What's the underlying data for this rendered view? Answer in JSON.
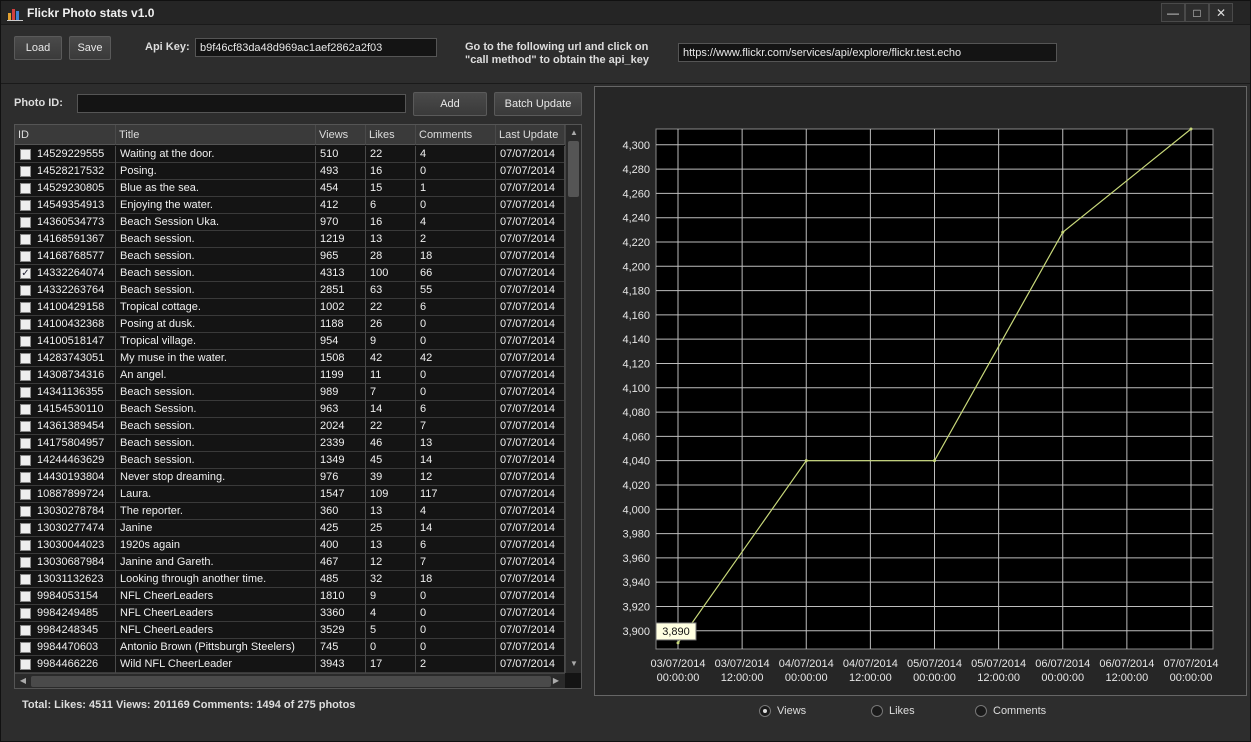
{
  "window": {
    "title": "Flickr Photo stats v1.0"
  },
  "toolbar": {
    "load_label": "Load",
    "save_label": "Save",
    "api_key_label": "Api Key:",
    "api_key_value": "b9f46cf83da48d969ac1aef2862a2f03",
    "hint_line1": "Go to the following url and click on",
    "hint_line2": "\"call method\" to obtain the api_key",
    "url_value": "https://www.flickr.com/services/api/explore/flickr.test.echo"
  },
  "photo_input": {
    "label": "Photo ID:",
    "value": "",
    "add_label": "Add",
    "batch_label": "Batch Update"
  },
  "grid": {
    "columns": [
      "ID",
      "Title",
      "Views",
      "Likes",
      "Comments",
      "Last Update"
    ],
    "rows": [
      {
        "checked": false,
        "id": "14529229555",
        "title": "Waiting at the door.",
        "views": "510",
        "likes": "22",
        "comments": "4",
        "updated": "07/07/2014"
      },
      {
        "checked": false,
        "id": "14528217532",
        "title": "Posing.",
        "views": "493",
        "likes": "16",
        "comments": "0",
        "updated": "07/07/2014"
      },
      {
        "checked": false,
        "id": "14529230805",
        "title": "Blue as the sea.",
        "views": "454",
        "likes": "15",
        "comments": "1",
        "updated": "07/07/2014"
      },
      {
        "checked": false,
        "id": "14549354913",
        "title": "Enjoying the water.",
        "views": "412",
        "likes": "6",
        "comments": "0",
        "updated": "07/07/2014"
      },
      {
        "checked": false,
        "id": "14360534773",
        "title": "Beach Session Uka.",
        "views": "970",
        "likes": "16",
        "comments": "4",
        "updated": "07/07/2014"
      },
      {
        "checked": false,
        "id": "14168591367",
        "title": "Beach session.",
        "views": "1219",
        "likes": "13",
        "comments": "2",
        "updated": "07/07/2014"
      },
      {
        "checked": false,
        "id": "14168768577",
        "title": "Beach session.",
        "views": "965",
        "likes": "28",
        "comments": "18",
        "updated": "07/07/2014"
      },
      {
        "checked": true,
        "id": "14332264074",
        "title": "Beach session.",
        "views": "4313",
        "likes": "100",
        "comments": "66",
        "updated": "07/07/2014"
      },
      {
        "checked": false,
        "id": "14332263764",
        "title": "Beach session.",
        "views": "2851",
        "likes": "63",
        "comments": "55",
        "updated": "07/07/2014"
      },
      {
        "checked": false,
        "id": "14100429158",
        "title": "Tropical cottage.",
        "views": "1002",
        "likes": "22",
        "comments": "6",
        "updated": "07/07/2014"
      },
      {
        "checked": false,
        "id": "14100432368",
        "title": "Posing at dusk.",
        "views": "1188",
        "likes": "26",
        "comments": "0",
        "updated": "07/07/2014"
      },
      {
        "checked": false,
        "id": "14100518147",
        "title": "Tropical village.",
        "views": "954",
        "likes": "9",
        "comments": "0",
        "updated": "07/07/2014"
      },
      {
        "checked": false,
        "id": "14283743051",
        "title": "My muse in the water.",
        "views": "1508",
        "likes": "42",
        "comments": "42",
        "updated": "07/07/2014"
      },
      {
        "checked": false,
        "id": "14308734316",
        "title": "An angel.",
        "views": "1199",
        "likes": "11",
        "comments": "0",
        "updated": "07/07/2014"
      },
      {
        "checked": false,
        "id": "14341136355",
        "title": "Beach session.",
        "views": "989",
        "likes": "7",
        "comments": "0",
        "updated": "07/07/2014"
      },
      {
        "checked": false,
        "id": "14154530110",
        "title": "Beach Session.",
        "views": "963",
        "likes": "14",
        "comments": "6",
        "updated": "07/07/2014"
      },
      {
        "checked": false,
        "id": "14361389454",
        "title": "Beach session.",
        "views": "2024",
        "likes": "22",
        "comments": "7",
        "updated": "07/07/2014"
      },
      {
        "checked": false,
        "id": "14175804957",
        "title": "Beach session.",
        "views": "2339",
        "likes": "46",
        "comments": "13",
        "updated": "07/07/2014"
      },
      {
        "checked": false,
        "id": "14244463629",
        "title": "Beach session.",
        "views": "1349",
        "likes": "45",
        "comments": "14",
        "updated": "07/07/2014"
      },
      {
        "checked": false,
        "id": "14430193804",
        "title": "Never stop dreaming.",
        "views": "976",
        "likes": "39",
        "comments": "12",
        "updated": "07/07/2014"
      },
      {
        "checked": false,
        "id": "10887899724",
        "title": "Laura.",
        "views": "1547",
        "likes": "109",
        "comments": "117",
        "updated": "07/07/2014"
      },
      {
        "checked": false,
        "id": "13030278784",
        "title": "The reporter.",
        "views": "360",
        "likes": "13",
        "comments": "4",
        "updated": "07/07/2014"
      },
      {
        "checked": false,
        "id": "13030277474",
        "title": "Janine",
        "views": "425",
        "likes": "25",
        "comments": "14",
        "updated": "07/07/2014"
      },
      {
        "checked": false,
        "id": "13030044023",
        "title": "1920s again",
        "views": "400",
        "likes": "13",
        "comments": "6",
        "updated": "07/07/2014"
      },
      {
        "checked": false,
        "id": "13030687984",
        "title": "Janine and Gareth.",
        "views": "467",
        "likes": "12",
        "comments": "7",
        "updated": "07/07/2014"
      },
      {
        "checked": false,
        "id": "13031132623",
        "title": "Looking through another time.",
        "views": "485",
        "likes": "32",
        "comments": "18",
        "updated": "07/07/2014"
      },
      {
        "checked": false,
        "id": "9984053154",
        "title": "NFL CheerLeaders",
        "views": "1810",
        "likes": "9",
        "comments": "0",
        "updated": "07/07/2014"
      },
      {
        "checked": false,
        "id": "9984249485",
        "title": "NFL CheerLeaders",
        "views": "3360",
        "likes": "4",
        "comments": "0",
        "updated": "07/07/2014"
      },
      {
        "checked": false,
        "id": "9984248345",
        "title": "NFL CheerLeaders",
        "views": "3529",
        "likes": "5",
        "comments": "0",
        "updated": "07/07/2014"
      },
      {
        "checked": false,
        "id": "9984470603",
        "title": "Antonio Brown (Pittsburgh Steelers)",
        "views": "745",
        "likes": "0",
        "comments": "0",
        "updated": "07/07/2014"
      },
      {
        "checked": false,
        "id": "9984466226",
        "title": "Wild NFL CheerLeader",
        "views": "3943",
        "likes": "17",
        "comments": "2",
        "updated": "07/07/2014"
      }
    ]
  },
  "status": {
    "summary": "Total: Likes: 4511 Views: 201169 Comments: 1494 of 275 photos"
  },
  "series_selector": {
    "options": [
      {
        "label": "Views",
        "selected": true
      },
      {
        "label": "Likes",
        "selected": false
      },
      {
        "label": "Comments",
        "selected": false
      }
    ]
  },
  "colors": {
    "line": "#c8d87a",
    "grid": "#bdbdbd",
    "plot_bg": "#000000"
  },
  "chart_data": {
    "type": "line",
    "title": "",
    "xlabel": "",
    "ylabel": "",
    "x_ticks": [
      [
        "03/07/2014",
        "00:00:00"
      ],
      [
        "03/07/2014",
        "12:00:00"
      ],
      [
        "04/07/2014",
        "00:00:00"
      ],
      [
        "04/07/2014",
        "12:00:00"
      ],
      [
        "05/07/2014",
        "00:00:00"
      ],
      [
        "05/07/2014",
        "12:00:00"
      ],
      [
        "06/07/2014",
        "00:00:00"
      ],
      [
        "06/07/2014",
        "12:00:00"
      ],
      [
        "07/07/2014",
        "00:00:00"
      ]
    ],
    "y_ticks": [
      "3,900",
      "3,920",
      "3,940",
      "3,960",
      "3,980",
      "4,000",
      "4,020",
      "4,040",
      "4,060",
      "4,080",
      "4,100",
      "4,120",
      "4,140",
      "4,160",
      "4,180",
      "4,200",
      "4,220",
      "4,240",
      "4,260",
      "4,280",
      "4,300"
    ],
    "ylim": [
      3885,
      4313
    ],
    "grid": true,
    "series": [
      {
        "x": [
          "03/07/2014 00:00:00",
          "04/07/2014 00:00:00",
          "05/07/2014 00:00:00",
          "06/07/2014 00:00:00",
          "07/07/2014 00:00:00"
        ],
        "y": [
          3890,
          4040,
          4040,
          4228,
          4313
        ]
      }
    ],
    "tooltip": "3,890"
  }
}
